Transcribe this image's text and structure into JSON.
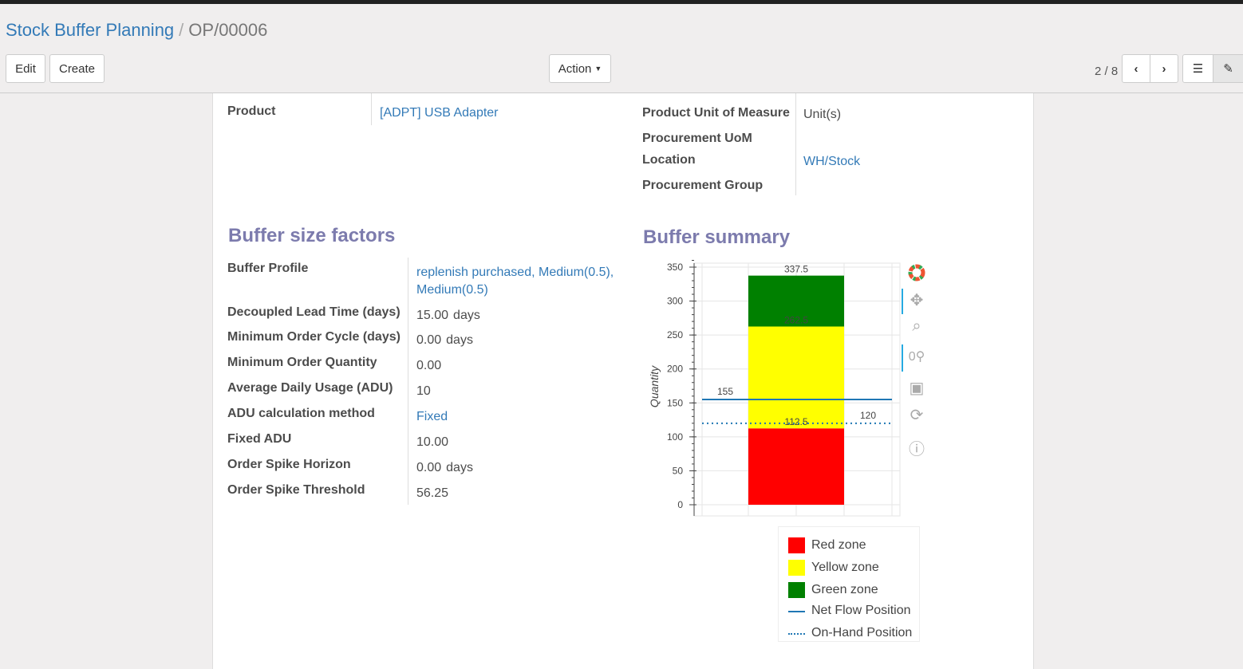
{
  "breadcrumb": {
    "parent": "Stock Buffer Planning",
    "current": "OP/00006"
  },
  "toolbar": {
    "edit": "Edit",
    "create": "Create",
    "action": "Action",
    "pager": "2 / 8"
  },
  "header_fields": {
    "product_label": "Product",
    "product_value": "[ADPT] USB Adapter",
    "uom_label": "Product Unit of Measure",
    "uom_value": "Unit(s)",
    "proc_uom_label": "Procurement UoM",
    "location_label": "Location",
    "location_value": "WH/Stock",
    "proc_group_label": "Procurement Group"
  },
  "buffer_factors": {
    "title": "Buffer size factors",
    "rows": [
      {
        "label": "Buffer Profile",
        "value": "replenish purchased, Medium(0.5), Medium(0.5)",
        "unit": ""
      },
      {
        "label": "Decoupled Lead Time (days)",
        "value": "15.00",
        "unit": "days"
      },
      {
        "label": "Minimum Order Cycle (days)",
        "value": "0.00",
        "unit": "days"
      },
      {
        "label": "Minimum Order Quantity",
        "value": "0.00",
        "unit": ""
      },
      {
        "label": "Average Daily Usage (ADU)",
        "value": "10",
        "unit": ""
      },
      {
        "label": "ADU calculation method",
        "value": "Fixed",
        "unit": ""
      },
      {
        "label": "Fixed ADU",
        "value": "10.00",
        "unit": ""
      },
      {
        "label": "Order Spike Horizon",
        "value": "0.00",
        "unit": "days"
      },
      {
        "label": "Order Spike Threshold",
        "value": "56.25",
        "unit": ""
      }
    ]
  },
  "summary_title": "Buffer summary",
  "chart_data": {
    "type": "bar",
    "ylabel": "Quantity",
    "ylim": [
      0,
      350
    ],
    "yticks": [
      0,
      50,
      100,
      150,
      200,
      250,
      300,
      350
    ],
    "grid": true,
    "stacked_zones": [
      {
        "name": "Red zone",
        "from": 0,
        "to": 112.5,
        "color": "#ff0000",
        "label": "112.5"
      },
      {
        "name": "Yellow zone",
        "from": 112.5,
        "to": 262.5,
        "color": "#ffff00",
        "label": "262.5"
      },
      {
        "name": "Green zone",
        "from": 262.5,
        "to": 337.5,
        "color": "#008000",
        "label": "337.5"
      }
    ],
    "lines": [
      {
        "name": "Net Flow Position",
        "value": 155,
        "style": "solid",
        "color": "#1f77b4",
        "label": "155"
      },
      {
        "name": "On-Hand Position",
        "value": 120,
        "style": "dotted",
        "color": "#1f77b4",
        "label": "120"
      }
    ],
    "legend_position": "bottom-right"
  }
}
